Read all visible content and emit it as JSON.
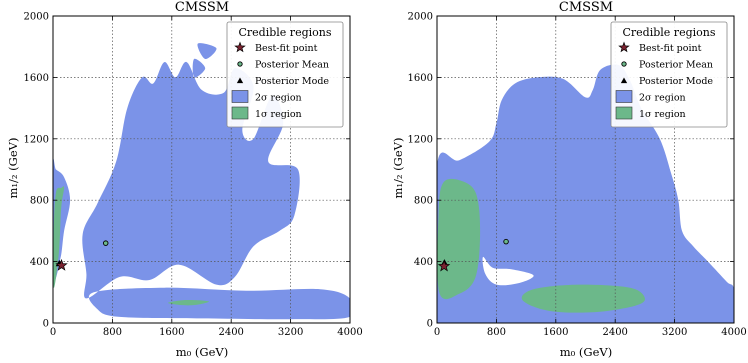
{
  "colors": {
    "sigma2": "#7b93e8",
    "sigma1": "#6cb88a",
    "grid": "#555555",
    "best_fit": "#7a2230",
    "mean": "#6cb88a"
  },
  "chart_data": [
    {
      "type": "area",
      "title": "CMSSM",
      "xlabel": "m₀ (GeV)",
      "ylabel": "m₁/₂ (GeV)",
      "xlim": [
        0,
        4000
      ],
      "ylim": [
        0,
        2000
      ],
      "xticks": [
        "0",
        "800",
        "1600",
        "2400",
        "3200",
        "4000"
      ],
      "yticks": [
        "0",
        "400",
        "800",
        "1200",
        "1600",
        "2000"
      ],
      "grid": true,
      "legend_title": "Credible regions",
      "legend_position": "top-right",
      "legend": [
        "Best-fit point",
        "Posterior Mean",
        "Posterior Mode",
        "2σ region",
        "1σ region"
      ],
      "points": {
        "best_fit": [
          115,
          375
        ],
        "posterior_mean": [
          710,
          520
        ],
        "posterior_mode": [
          85,
          385
        ]
      },
      "regions": {
        "sigma2": [
          [
            [
              0,
              300
            ],
            [
              100,
              420
            ],
            [
              150,
              600
            ],
            [
              230,
              800
            ],
            [
              150,
              950
            ],
            [
              40,
              1000
            ],
            [
              0,
              1020
            ]
          ],
          [
            [
              450,
              160
            ],
            [
              450,
              320
            ],
            [
              400,
              580
            ],
            [
              600,
              780
            ],
            [
              850,
              1050
            ],
            [
              1000,
              1400
            ],
            [
              1200,
              1600
            ],
            [
              1350,
              1560
            ],
            [
              1500,
              1700
            ],
            [
              1650,
              1600
            ],
            [
              1800,
              1700
            ],
            [
              2000,
              1520
            ],
            [
              2300,
              1500
            ],
            [
              2450,
              1660
            ],
            [
              2700,
              1540
            ],
            [
              2550,
              1260
            ],
            [
              2700,
              1200
            ],
            [
              2950,
              1480
            ],
            [
              3100,
              1300
            ],
            [
              2900,
              1050
            ],
            [
              3300,
              1000
            ],
            [
              3250,
              700
            ],
            [
              3050,
              600
            ],
            [
              2700,
              500
            ],
            [
              2450,
              300
            ],
            [
              2200,
              250
            ],
            [
              1700,
              380
            ],
            [
              1300,
              280
            ],
            [
              900,
              300
            ]
          ],
          [
            [
              550,
              200
            ],
            [
              1500,
              230
            ],
            [
              2600,
              210
            ],
            [
              3600,
              220
            ],
            [
              4000,
              160
            ],
            [
              4000,
              40
            ],
            [
              3200,
              25
            ],
            [
              2000,
              30
            ],
            [
              900,
              40
            ],
            [
              600,
              90
            ]
          ],
          [
            [
              1950,
              1820
            ],
            [
              2200,
              1790
            ],
            [
              2050,
              1720
            ]
          ],
          [
            [
              1900,
              1720
            ],
            [
              2050,
              1660
            ],
            [
              1900,
              1600
            ]
          ]
        ],
        "sigma1": [
          [
            [
              10,
              230
            ],
            [
              80,
              460
            ],
            [
              110,
              750
            ],
            [
              150,
              880
            ],
            [
              110,
              880
            ],
            [
              40,
              850
            ],
            [
              10,
              600
            ]
          ],
          [
            [
              1550,
              130
            ],
            [
              1800,
              150
            ],
            [
              2100,
              140
            ],
            [
              1850,
              115
            ]
          ]
        ]
      }
    },
    {
      "type": "area",
      "title": "CMSSM",
      "xlabel": "m₀ (GeV)",
      "ylabel": "m₁/₂ (GeV)",
      "xlim": [
        0,
        4000
      ],
      "ylim": [
        0,
        2000
      ],
      "xticks": [
        "0",
        "800",
        "1600",
        "2400",
        "3200",
        "4000"
      ],
      "yticks": [
        "0",
        "400",
        "800",
        "1200",
        "1600",
        "2000"
      ],
      "grid": true,
      "legend_title": "Credible regions",
      "legend_position": "top-right",
      "legend": [
        "Best-fit point",
        "Posterior Mean",
        "Posterior Mode",
        "2σ region",
        "1σ region"
      ],
      "points": {
        "best_fit": [
          95,
          370
        ],
        "posterior_mean": [
          930,
          530
        ],
        "posterior_mode": [
          100,
          390
        ]
      },
      "regions": {
        "sigma2": [
          [
            [
              0,
              0
            ],
            [
              0,
              1030
            ],
            [
              300,
              1060
            ],
            [
              700,
              1180
            ],
            [
              800,
              1300
            ],
            [
              870,
              1450
            ],
            [
              1050,
              1560
            ],
            [
              1350,
              1600
            ],
            [
              1700,
              1590
            ],
            [
              2000,
              1470
            ],
            [
              2100,
              1520
            ],
            [
              2200,
              1650
            ],
            [
              2450,
              1680
            ],
            [
              2600,
              1580
            ],
            [
              2750,
              1400
            ],
            [
              3000,
              1200
            ],
            [
              3150,
              980
            ],
            [
              3250,
              800
            ],
            [
              3300,
              600
            ],
            [
              3450,
              500
            ],
            [
              3650,
              400
            ],
            [
              3900,
              270
            ],
            [
              4000,
              220
            ],
            [
              4000,
              0
            ]
          ]
        ],
        "sigma2_hole": [
          [
            [
              620,
              430
            ],
            [
              750,
              360
            ],
            [
              1000,
              350
            ],
            [
              1300,
              310
            ],
            [
              1100,
              260
            ],
            [
              800,
              250
            ],
            [
              650,
              320
            ]
          ]
        ],
        "sigma1": [
          [
            [
              30,
              200
            ],
            [
              300,
              190
            ],
            [
              520,
              300
            ],
            [
              580,
              600
            ],
            [
              520,
              850
            ],
            [
              300,
              930
            ],
            [
              80,
              910
            ],
            [
              20,
              700
            ]
          ],
          [
            [
              1150,
              150
            ],
            [
              1500,
              80
            ],
            [
              2100,
              70
            ],
            [
              2650,
              110
            ],
            [
              2800,
              160
            ],
            [
              2600,
              230
            ],
            [
              1900,
              250
            ],
            [
              1300,
              220
            ]
          ]
        ]
      }
    }
  ]
}
